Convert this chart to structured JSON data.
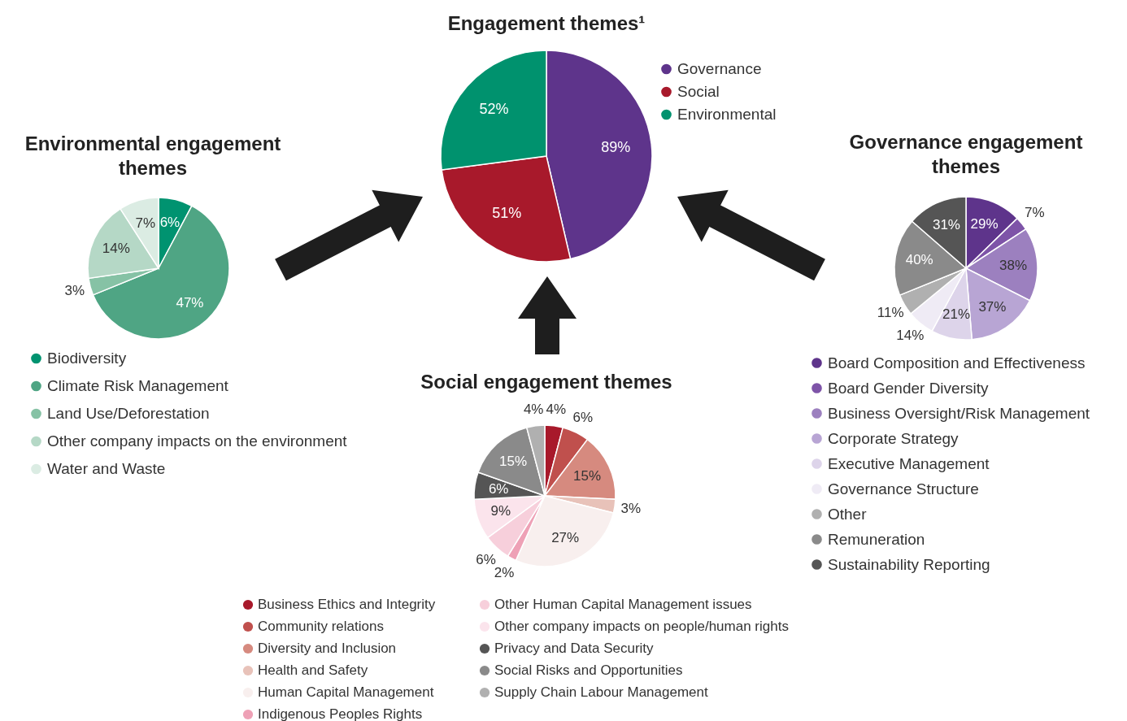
{
  "chart_data": [
    {
      "type": "pie",
      "title": "Engagement themes¹",
      "categories": [
        "Governance",
        "Social",
        "Environmental"
      ],
      "values": [
        89,
        51,
        52
      ],
      "value_labels": [
        "89%",
        "51%",
        "52%"
      ],
      "colors": [
        "#5e348b",
        "#a8192b",
        "#00926e"
      ],
      "legend": "top right"
    },
    {
      "type": "pie",
      "title": "Environmental engagement themes",
      "categories": [
        "Biodiversity",
        "Climate Risk Management",
        "Land Use/Deforestation",
        "Other company impacts on the environment",
        "Water and Waste"
      ],
      "values": [
        6,
        47,
        3,
        14,
        7
      ],
      "value_labels": [
        "6%",
        "47%",
        "3%",
        "14%",
        "7%"
      ],
      "colors": [
        "#009370",
        "#4fa584",
        "#86c2a5",
        "#b5d8c6",
        "#dbece3"
      ],
      "legend": "bottom"
    },
    {
      "type": "pie",
      "title": "Governance engagement themes",
      "categories": [
        "Board Composition and Effectiveness",
        "Board Gender Diversity",
        "Business Oversight/Risk Management",
        "Corporate Strategy",
        "Executive Management",
        "Governance Structure",
        "Other",
        "Remuneration",
        "Sustainability Reporting"
      ],
      "values": [
        29,
        7,
        38,
        37,
        21,
        14,
        11,
        40,
        31
      ],
      "value_labels": [
        "29%",
        "7%",
        "38%",
        "37%",
        "21%",
        "14%",
        "11%",
        "40%",
        "31%"
      ],
      "colors": [
        "#5e348b",
        "#7e54a8",
        "#9c80bf",
        "#b8a5d4",
        "#ddd4ea",
        "#efebf5",
        "#b0b0b0",
        "#8a8a8a",
        "#555555"
      ],
      "legend": "bottom"
    },
    {
      "type": "pie",
      "title": "Social engagement themes",
      "categories": [
        "Business Ethics and Integrity",
        "Community relations",
        "Diversity and Inclusion",
        "Health and Safety",
        "Human Capital Management",
        "Indigenous Peoples Rights",
        "Other Human Capital Management issues",
        "Other company impacts on people/human rights",
        "Privacy and Data Security",
        "Social Risks and Opportunities",
        "Supply Chain Labour Management"
      ],
      "values": [
        4,
        6,
        15,
        3,
        27,
        2,
        6,
        9,
        6,
        15,
        4
      ],
      "value_labels": [
        "4%",
        "6%",
        "15%",
        "3%",
        "27%",
        "2%",
        "6%",
        "9%",
        "6%",
        "15%",
        "4%"
      ],
      "colors": [
        "#a8192b",
        "#c0504d",
        "#d68a7f",
        "#e8c2b9",
        "#f8efee",
        "#eea1b6",
        "#f7cfdb",
        "#fbe4ec",
        "#555555",
        "#8a8a8a",
        "#b0b0b0"
      ],
      "legend": "bottom"
    }
  ]
}
